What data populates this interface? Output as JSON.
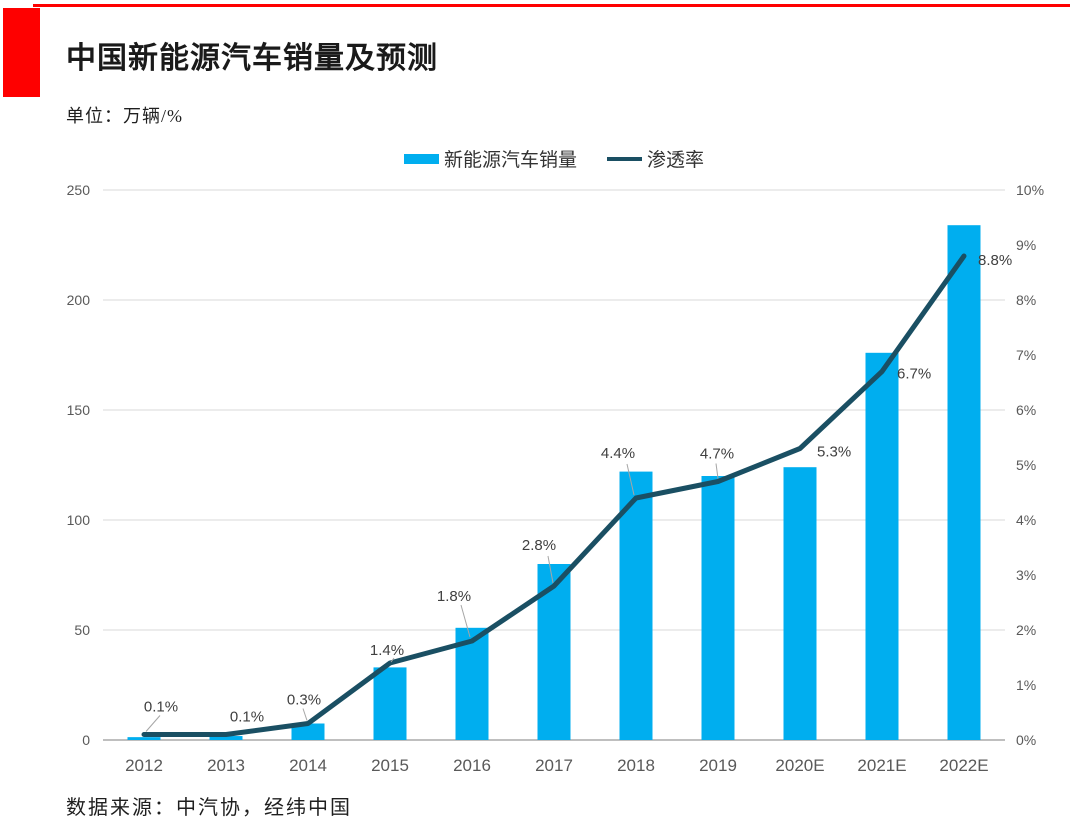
{
  "page": {
    "title": "中国新能源汽车销量及预测",
    "unit_label": "单位：万辆/%",
    "source_label": "数据来源：中汽协，经纬中国",
    "accent_color": "#FE0000",
    "background": "#FFFFFF"
  },
  "legend": {
    "items": [
      {
        "label": "新能源汽车销量",
        "swatch": "bar",
        "color": "#00AEEF"
      },
      {
        "label": "渗透率",
        "swatch": "line",
        "color": "#1A4F63"
      }
    ]
  },
  "chart_data": {
    "type": "bar+line combo",
    "title": "中国新能源汽车销量及预测",
    "unit": "万辆/%",
    "source": "数据来源：中汽协，经纬中国",
    "categories": [
      "2012",
      "2013",
      "2014",
      "2015",
      "2016",
      "2017",
      "2018",
      "2019",
      "2020E",
      "2021E",
      "2022E"
    ],
    "series": [
      {
        "name": "新能源汽车销量",
        "chart": "bar",
        "axis": "left",
        "unit": "万辆",
        "color": "#00AEEF",
        "values": [
          1.3,
          1.8,
          7.5,
          33,
          51,
          80,
          122,
          120,
          124,
          176,
          234
        ]
      },
      {
        "name": "渗透率",
        "chart": "line",
        "axis": "right",
        "unit": "%",
        "color": "#1A4F63",
        "values": [
          0.1,
          0.1,
          0.3,
          1.4,
          1.8,
          2.8,
          4.4,
          4.7,
          5.3,
          6.7,
          8.8
        ],
        "point_labels": [
          "0.1%",
          "0.1%",
          "0.3%",
          "1.4%",
          "1.8%",
          "2.8%",
          "4.4%",
          "4.7%",
          "5.3%",
          "6.7%",
          "8.8%"
        ]
      }
    ],
    "left_axis": {
      "min": 0,
      "max": 250,
      "tick_values": [
        0,
        50,
        100,
        150,
        200,
        250
      ],
      "tick_labels": [
        "0",
        "50",
        "100",
        "150",
        "200",
        "250"
      ]
    },
    "right_axis": {
      "min": 0,
      "max": 10,
      "tick_labels": [
        "0%",
        "1%",
        "2%",
        "3%",
        "4%",
        "5%",
        "6%",
        "7%",
        "8%",
        "9%",
        "10%"
      ]
    },
    "grid": "horizontal",
    "legend_position": "top-center",
    "colors": {
      "grid": "#D9D9D9",
      "axis_line": "#BFBFBF",
      "tick_text": "#595959",
      "x_label_text": "#595959",
      "data_label_text": "#404040",
      "leader_line": "#A6A6A6"
    }
  }
}
